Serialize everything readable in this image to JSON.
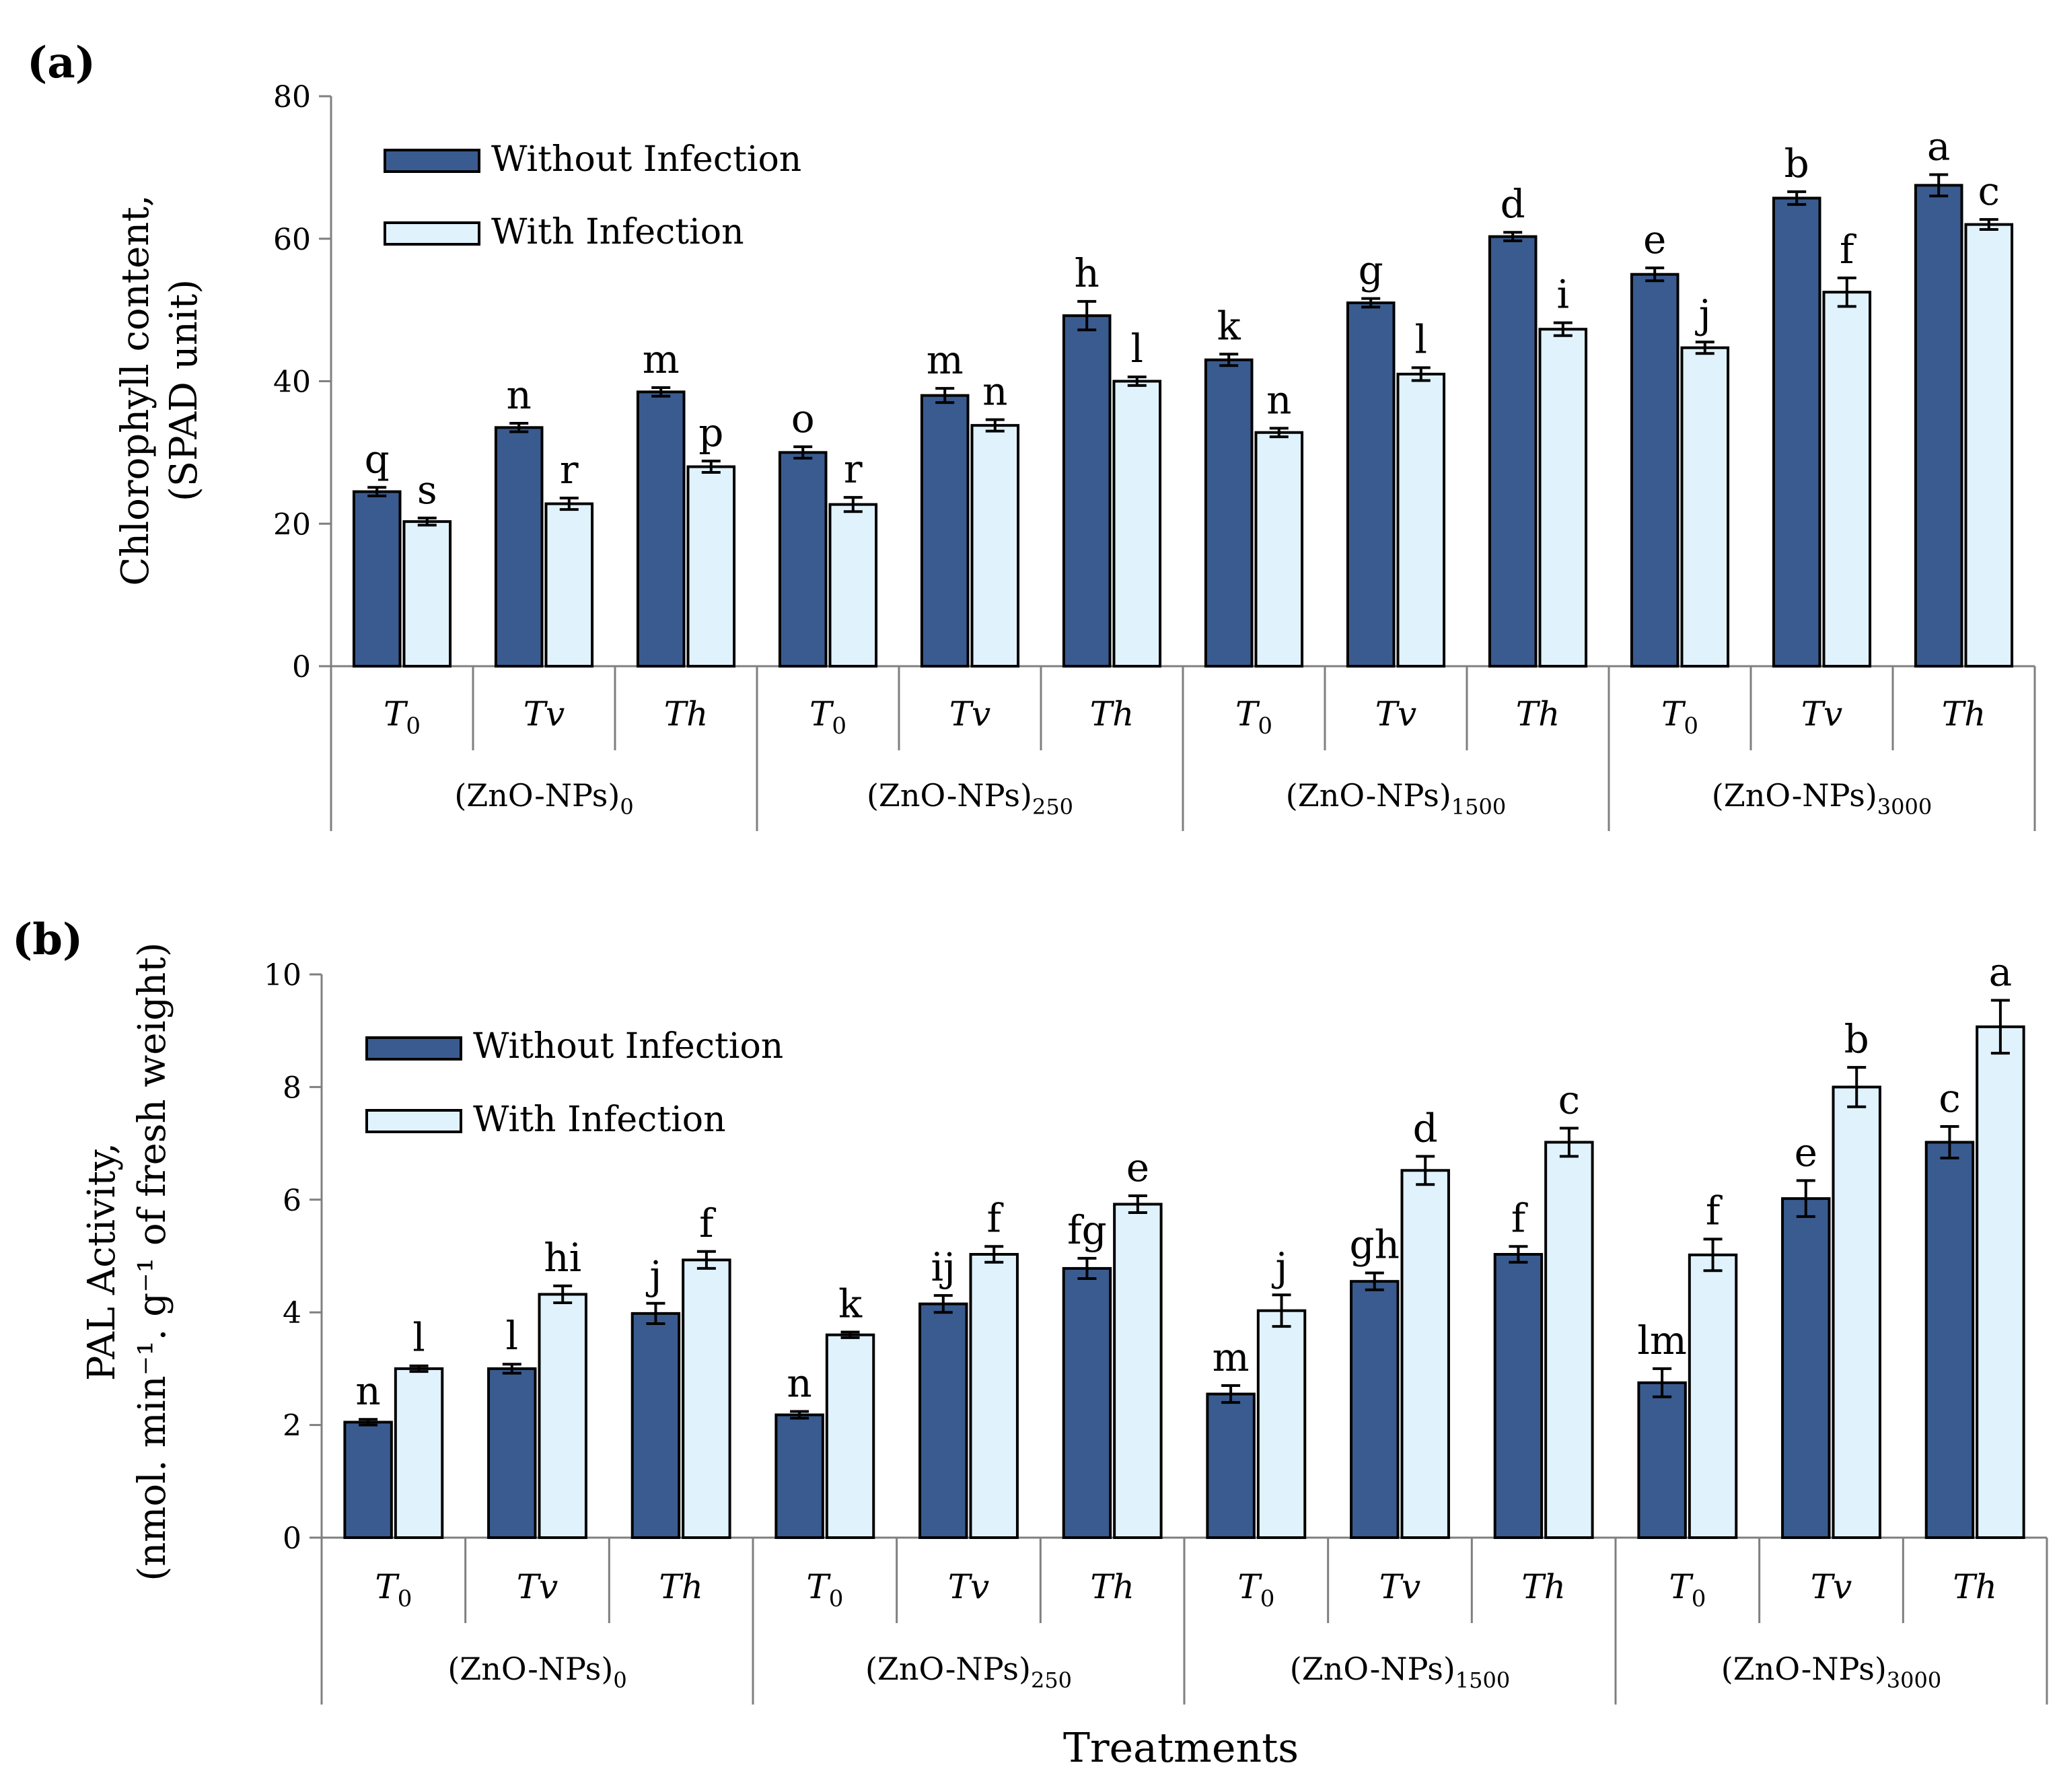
{
  "colors": {
    "without": "#3a5b8f",
    "with": "#e0f2fc",
    "stroke": "#000000",
    "axis": "#7f7f7f"
  },
  "common": {
    "groups": [
      "(ZnO-NPs)",
      "(ZnO-NPs)",
      "(ZnO-NPs)",
      "(ZnO-NPs)"
    ],
    "group_subscripts": [
      "0",
      "250",
      "1500",
      "3000"
    ],
    "treatments": [
      "T",
      "Tv",
      "Th",
      "T",
      "Tv",
      "Th",
      "T",
      "Tv",
      "Th",
      "T",
      "Tv",
      "Th"
    ],
    "treatment_subscripts": [
      "0",
      "",
      "",
      "0",
      "",
      "",
      "0",
      "",
      "",
      "0",
      "",
      ""
    ],
    "xlabel": "Treatments"
  },
  "chart_data": [
    {
      "panel_label": "(a)",
      "type": "bar",
      "ylabel_line1": "Chlorophyll content,",
      "ylabel_line2": "(SPAD unit)",
      "ylim": [
        0,
        80
      ],
      "yticks": [
        "0",
        "20",
        "40",
        "60",
        "80"
      ],
      "legend": [
        "Without Infection",
        "With Infection"
      ],
      "series": [
        {
          "name": "Without Infection",
          "values": [
            24.5,
            33.5,
            38.5,
            30,
            38,
            49.2,
            43,
            51,
            60.3,
            55,
            65.7,
            67.5
          ],
          "errors": [
            0.6,
            0.6,
            0.6,
            0.8,
            1.0,
            2.0,
            0.8,
            0.6,
            0.6,
            0.9,
            0.9,
            1.5
          ],
          "letters": [
            "q",
            "n",
            "m",
            "o",
            "m",
            "h",
            "k",
            "g",
            "d",
            "e",
            "b",
            "a"
          ]
        },
        {
          "name": "With Infection",
          "values": [
            20.3,
            22.8,
            28,
            22.7,
            33.8,
            40,
            32.8,
            41,
            47.3,
            44.7,
            52.5,
            62
          ],
          "errors": [
            0.5,
            0.8,
            0.8,
            1.0,
            0.8,
            0.6,
            0.6,
            0.9,
            0.9,
            0.8,
            2.0,
            0.7
          ],
          "letters": [
            "s",
            "r",
            "p",
            "r",
            "n",
            "l",
            "n",
            "l",
            "i",
            "j",
            "f",
            "c"
          ]
        }
      ]
    },
    {
      "panel_label": "(b)",
      "type": "bar",
      "ylabel_line1": "PAL Activity,",
      "ylabel_line2": "(nmol. min⁻¹. g⁻¹ of fresh weight)",
      "ylim": [
        0,
        10
      ],
      "yticks": [
        "0",
        "2",
        "4",
        "6",
        "8",
        "10"
      ],
      "legend": [
        "Without Infection",
        "With Infection"
      ],
      "series": [
        {
          "name": "Without Infection",
          "values": [
            2.05,
            3.0,
            3.98,
            2.18,
            4.15,
            4.78,
            2.55,
            4.55,
            5.03,
            2.75,
            6.02,
            7.02
          ],
          "errors": [
            0.05,
            0.08,
            0.18,
            0.06,
            0.15,
            0.18,
            0.15,
            0.15,
            0.14,
            0.25,
            0.32,
            0.28
          ],
          "letters": [
            "n",
            "l",
            "j",
            "n",
            "ij",
            "fg",
            "m",
            "gh",
            "f",
            "lm",
            "e",
            "c"
          ]
        },
        {
          "name": "With Infection",
          "values": [
            3.0,
            4.32,
            4.93,
            3.6,
            5.03,
            5.92,
            4.03,
            6.52,
            7.02,
            5.02,
            8.0,
            9.07
          ],
          "errors": [
            0.05,
            0.15,
            0.15,
            0.05,
            0.14,
            0.15,
            0.28,
            0.25,
            0.25,
            0.28,
            0.35,
            0.47
          ],
          "letters": [
            "l",
            "hi",
            "f",
            "k",
            "f",
            "e",
            "j",
            "d",
            "c",
            "f",
            "b",
            "a"
          ]
        }
      ]
    }
  ]
}
